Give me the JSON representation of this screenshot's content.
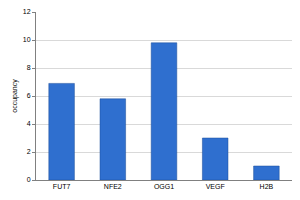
{
  "chart_data": {
    "type": "bar",
    "categories": [
      "FUT7",
      "NFE2",
      "OGG1",
      "VEGF",
      "H2B"
    ],
    "values": [
      6.9,
      5.8,
      9.8,
      3.0,
      1.0
    ],
    "color": "#2f6fcf",
    "y_label": "occupancy",
    "ylim": [
      0,
      12
    ],
    "yticks": [
      0,
      2,
      4,
      6,
      8,
      10,
      12
    ],
    "grid": true
  }
}
